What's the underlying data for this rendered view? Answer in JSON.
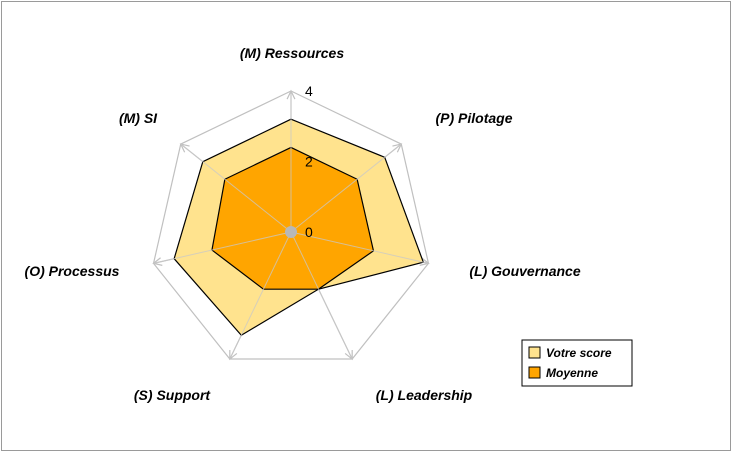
{
  "chart_data": {
    "type": "radar",
    "axes": [
      "(M) Ressources",
      "(P) Pilotage",
      "(L) Gouvernance",
      "(L) Leadership",
      "(S) Support",
      "(O) Processus",
      "(M) SI"
    ],
    "rmax": 4,
    "ticks": [
      "0",
      "2",
      "4"
    ],
    "tick_values": [
      0,
      2,
      4
    ],
    "grid": true,
    "legend_position": "bottom-right",
    "series": [
      {
        "name": "Votre score",
        "values": [
          3.2,
          3.4,
          3.85,
          1.8,
          3.25,
          3.4,
          3.2
        ],
        "color": "#FFE38E"
      },
      {
        "name": "Moyenne",
        "values": [
          2.4,
          2.4,
          2.4,
          1.8,
          1.8,
          2.3,
          2.4
        ],
        "color": "#FFA500"
      }
    ]
  }
}
